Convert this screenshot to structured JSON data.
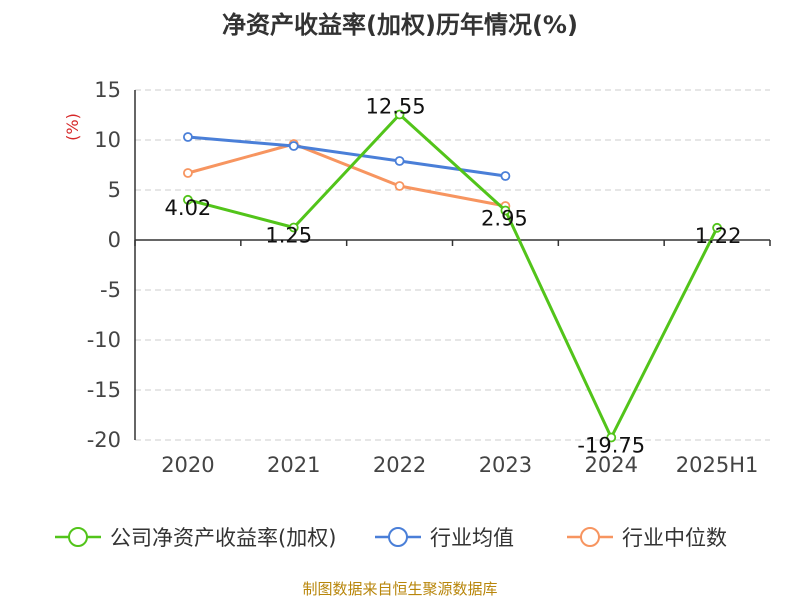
{
  "chart_data": {
    "type": "line",
    "title": "净资产收益率(加权)历年情况(%)",
    "ylabel": "(%)",
    "categories": [
      "2020",
      "2021",
      "2022",
      "2023",
      "2024",
      "2025H1"
    ],
    "yticks": [
      15,
      10,
      5,
      0,
      -5,
      -10,
      -15,
      -20
    ],
    "ylim": [
      -20,
      15
    ],
    "grid": true,
    "legend_position": "bottom",
    "series": [
      {
        "name": "公司净资产收益率(加权)",
        "color": "#52c41a",
        "values": [
          4.02,
          1.25,
          12.55,
          2.95,
          -19.75,
          1.22
        ],
        "labels": [
          "4.02",
          "1.25",
          "12.55",
          "2.95",
          "-19.75",
          "1.22"
        ]
      },
      {
        "name": "行业均值",
        "color": "#4a7fd8",
        "values": [
          10.3,
          9.4,
          7.9,
          6.4,
          null,
          null
        ]
      },
      {
        "name": "行业中位数",
        "color": "#f79560",
        "values": [
          6.7,
          9.6,
          5.4,
          3.4,
          null,
          null
        ]
      }
    ]
  },
  "source": "制图数据来自恒生聚源数据库"
}
